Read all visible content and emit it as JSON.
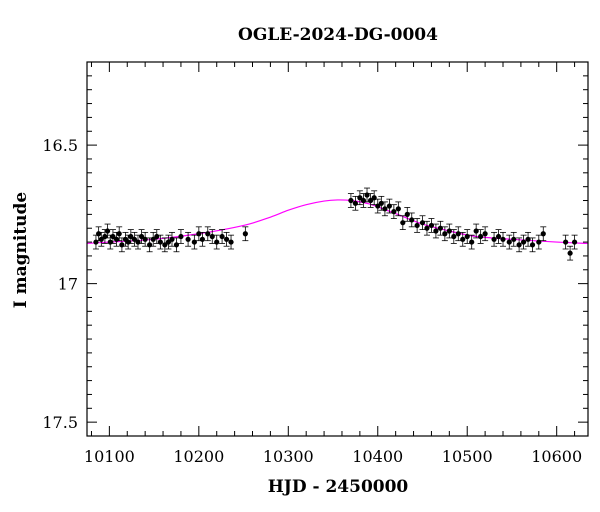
{
  "chart_data": {
    "type": "scatter",
    "title": "OGLE-2024-DG-0004",
    "xlabel": "HJD - 2450000",
    "ylabel": "I magnitude",
    "xlim": [
      10075,
      10635
    ],
    "ylim": [
      17.55,
      16.2
    ],
    "y_inverted": true,
    "x_ticks": [
      10100,
      10200,
      10300,
      10400,
      10500,
      10600
    ],
    "x_tick_labels": [
      "10100",
      "10200",
      "10300",
      "10400",
      "10500",
      "10600"
    ],
    "y_ticks": [
      16.5,
      17,
      17.5
    ],
    "y_tick_labels": [
      "16.5",
      "17",
      "17.5"
    ],
    "grid": false,
    "colors": {
      "data": "#000000",
      "model": "#ff00ff",
      "axes": "#000000"
    },
    "series": [
      {
        "type": "scatter_errorbars",
        "x": [
          10085,
          10088,
          10091,
          10095,
          10098,
          10101,
          10104,
          10108,
          10111,
          10114,
          10118,
          10121,
          10124,
          10128,
          10132,
          10136,
          10140,
          10145,
          10149,
          10153,
          10157,
          10162,
          10166,
          10170,
          10175,
          10180,
          10188,
          10195,
          10200,
          10204,
          10210,
          10215,
          10220,
          10226,
          10231,
          10236,
          10252,
          10370,
          10375,
          10380,
          10384,
          10388,
          10392,
          10396,
          10400,
          10404,
          10408,
          10413,
          10418,
          10423,
          10428,
          10433,
          10438,
          10444,
          10450,
          10455,
          10460,
          10465,
          10470,
          10475,
          10480,
          10485,
          10490,
          10495,
          10500,
          10505,
          10510,
          10515,
          10520,
          10530,
          10535,
          10540,
          10547,
          10552,
          10558,
          10563,
          10568,
          10573,
          10580,
          10585,
          10610,
          10615,
          10620
        ],
        "y": [
          16.85,
          16.82,
          16.84,
          16.83,
          16.81,
          16.85,
          16.83,
          16.84,
          16.82,
          16.86,
          16.84,
          16.85,
          16.83,
          16.84,
          16.85,
          16.83,
          16.84,
          16.86,
          16.84,
          16.83,
          16.85,
          16.86,
          16.85,
          16.84,
          16.86,
          16.83,
          16.84,
          16.85,
          16.82,
          16.84,
          16.82,
          16.83,
          16.85,
          16.83,
          16.84,
          16.85,
          16.82,
          16.7,
          16.71,
          16.69,
          16.7,
          16.68,
          16.7,
          16.69,
          16.72,
          16.71,
          16.73,
          16.72,
          16.74,
          16.73,
          16.78,
          16.75,
          16.77,
          16.79,
          16.78,
          16.8,
          16.79,
          16.81,
          16.8,
          16.82,
          16.81,
          16.83,
          16.82,
          16.84,
          16.83,
          16.85,
          16.81,
          16.83,
          16.82,
          16.84,
          16.83,
          16.84,
          16.85,
          16.84,
          16.86,
          16.85,
          16.84,
          16.86,
          16.85,
          16.82,
          16.85,
          16.89,
          16.85
        ],
        "yerr": 0.025
      },
      {
        "type": "model_curve",
        "x": [
          10075,
          10100,
          10150,
          10200,
          10250,
          10280,
          10300,
          10320,
          10340,
          10355,
          10370,
          10390,
          10410,
          10430,
          10450,
          10480,
          10510,
          10550,
          10600,
          10635
        ],
        "y": [
          16.855,
          16.85,
          16.84,
          16.82,
          16.79,
          16.76,
          16.735,
          16.715,
          16.702,
          16.698,
          16.7,
          16.712,
          16.735,
          16.76,
          16.785,
          16.81,
          16.83,
          16.84,
          16.85,
          16.855
        ]
      }
    ]
  }
}
